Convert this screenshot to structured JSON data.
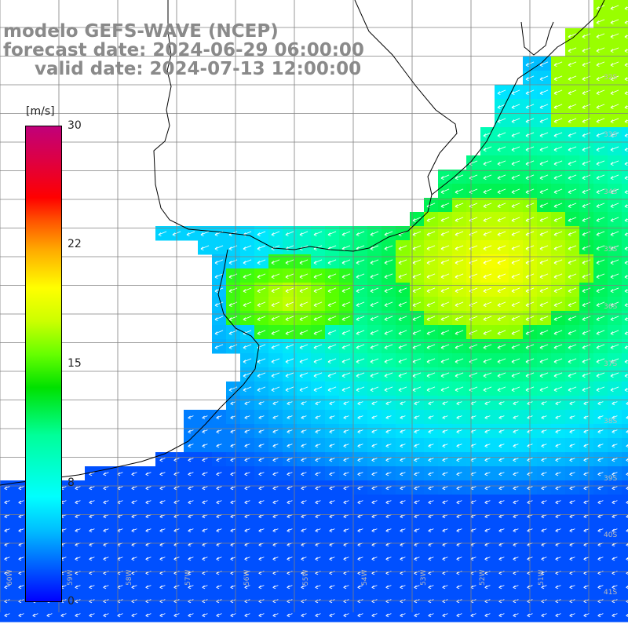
{
  "title": {
    "line1": "modelo GEFS-WAVE (NCEP)",
    "line2": "forecast date: 2024-06-29 06:00:00",
    "line3": "valid date: 2024-07-13 12:00:00"
  },
  "colorbar": {
    "unit": "[m/s]",
    "ticks": [
      "30",
      "22",
      "15",
      "8",
      "0"
    ],
    "colors": [
      "#0000ff",
      "#00bfff",
      "#00ffff",
      "#00e100",
      "#ffff00",
      "#ff0000",
      "#c0007a"
    ]
  },
  "lat_labels": [
    "32S",
    "33S",
    "34S",
    "35S",
    "36S",
    "37S",
    "38S",
    "39S",
    "40S",
    "41S"
  ],
  "lon_labels": [
    "60W",
    "59W",
    "58W",
    "57W",
    "56W",
    "55W",
    "54W",
    "53W",
    "52W",
    "51W"
  ],
  "field": {
    "variable": "wind speed",
    "arrow_direction": "toward southwest",
    "arrow_color": "#ffffff",
    "land_color": "#ffffff",
    "coast_color": "#000000",
    "grid_color": "#808080"
  }
}
